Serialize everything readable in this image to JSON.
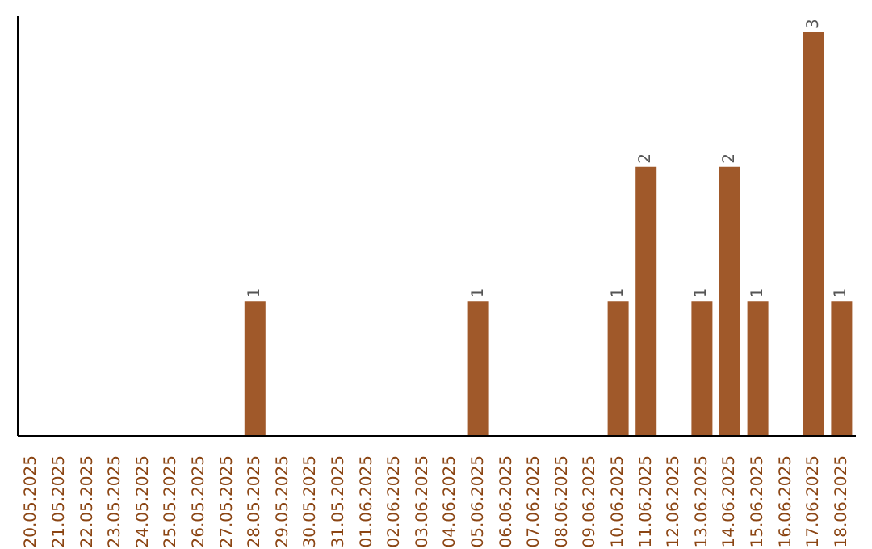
{
  "chart_data": {
    "type": "bar",
    "categories": [
      "20.05.2025",
      "21.05.2025",
      "22.05.2025",
      "23.05.2025",
      "24.05.2025",
      "25.05.2025",
      "26.05.2025",
      "27.05.2025",
      "28.05.2025",
      "29.05.2025",
      "30.05.2025",
      "31.05.2025",
      "01.06.2025",
      "02.06.2025",
      "03.06.2025",
      "04.06.2025",
      "05.06.2025",
      "06.06.2025",
      "07.06.2025",
      "08.06.2025",
      "09.06.2025",
      "10.06.2025",
      "11.06.2025",
      "12.06.2025",
      "13.06.2025",
      "14.06.2025",
      "15.06.2025",
      "16.06.2025",
      "17.06.2025",
      "18.06.2025"
    ],
    "values": [
      0,
      0,
      0,
      0,
      0,
      0,
      0,
      0,
      1,
      0,
      0,
      0,
      0,
      0,
      0,
      0,
      1,
      0,
      0,
      0,
      0,
      1,
      2,
      0,
      1,
      2,
      1,
      0,
      3,
      1
    ],
    "value_labels": [
      null,
      null,
      null,
      null,
      null,
      null,
      null,
      null,
      "1",
      null,
      null,
      null,
      null,
      null,
      null,
      null,
      "1",
      null,
      null,
      null,
      null,
      "1",
      "2",
      null,
      "1",
      "2",
      "1",
      null,
      "3",
      "1"
    ],
    "color": "#a0592a",
    "grid": false,
    "legend": false
  }
}
